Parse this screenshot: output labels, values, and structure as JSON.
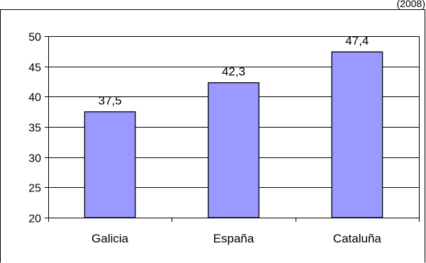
{
  "corner_text": "(2008)",
  "colors": {
    "bar_fill": "#9999FF",
    "bar_stroke": "#000000",
    "grid": "#000000",
    "background": "#FFFFFF"
  },
  "chart_data": {
    "type": "bar",
    "categories": [
      "Galicia",
      "España",
      "Cataluña"
    ],
    "values": [
      37.5,
      42.3,
      47.4
    ],
    "value_labels": [
      "37,5",
      "42,3",
      "47,4"
    ],
    "title": "",
    "xlabel": "",
    "ylabel": "",
    "ylim": [
      20,
      50
    ],
    "yticks": [
      20,
      25,
      30,
      35,
      40,
      45,
      50
    ],
    "ytick_labels": [
      "20",
      "25",
      "30",
      "35",
      "40",
      "45",
      "50"
    ],
    "grid": true,
    "legend": "none"
  }
}
